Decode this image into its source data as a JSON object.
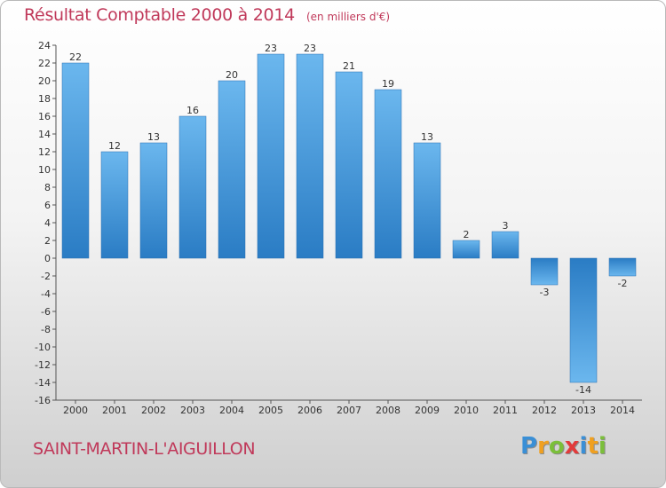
{
  "chart_data": {
    "type": "bar",
    "title": "Résultat Comptable 2000 à 2014",
    "subtitle": "(en milliers d'€)",
    "categories": [
      "2000",
      "2001",
      "2002",
      "2003",
      "2004",
      "2005",
      "2006",
      "2007",
      "2008",
      "2009",
      "2010",
      "2011",
      "2012",
      "2013",
      "2014"
    ],
    "values": [
      22,
      12,
      13,
      16,
      20,
      23,
      23,
      21,
      19,
      13,
      2,
      3,
      -3,
      -14,
      -2
    ],
    "data_labels": [
      "22",
      "12",
      "13",
      "16",
      "20",
      "23",
      "23",
      "21",
      "19",
      "13",
      "2",
      "3",
      "-3",
      "-14",
      "-2"
    ],
    "ylim": [
      -16,
      24
    ],
    "yticks": [
      "-16",
      "-14",
      "-12",
      "-10",
      "-8",
      "-6",
      "-4",
      "-2",
      "0",
      "2",
      "4",
      "6",
      "8",
      "10",
      "12",
      "14",
      "16",
      "18",
      "20",
      "22",
      "24"
    ],
    "xlabel": "",
    "ylabel": "",
    "grid": false,
    "bar_color": "#3a8fd6",
    "bar_color_light": "#6bb7ee"
  },
  "footer": {
    "location": "SAINT-MARTIN-L'AIGUILLON",
    "brand_letters": [
      {
        "ch": "P",
        "color": "#3a8fd6"
      },
      {
        "ch": "r",
        "color": "#f0a020"
      },
      {
        "ch": "o",
        "color": "#7bbf3a"
      },
      {
        "ch": "x",
        "color": "#e23b3b"
      },
      {
        "ch": "i",
        "color": "#3a8fd6"
      },
      {
        "ch": "t",
        "color": "#f0a020"
      },
      {
        "ch": "i",
        "color": "#7bbf3a"
      }
    ]
  }
}
